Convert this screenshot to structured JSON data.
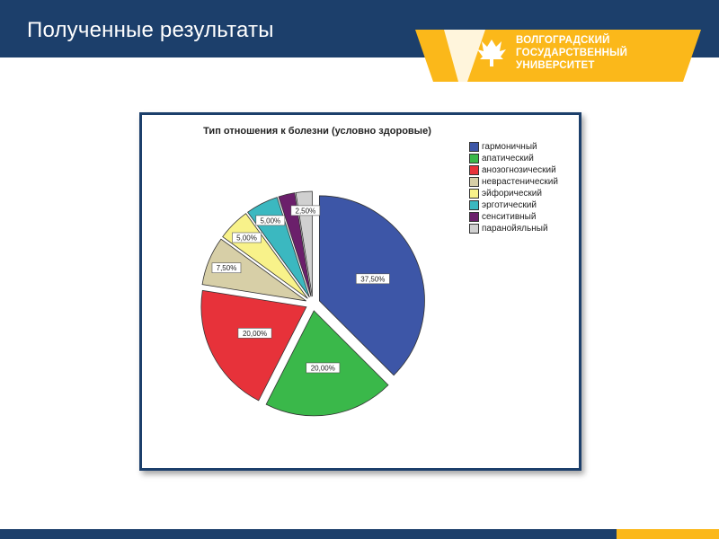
{
  "slide": {
    "title": "Полученные результаты"
  },
  "logo": {
    "line1": "ВОЛГОГРАДСКИЙ",
    "line2": "ГОСУДАРСТВЕННЫЙ",
    "line3": "УНИВЕРСИТЕТ",
    "colors": {
      "band": "#fbb81a",
      "header": "#1c3f6b",
      "text": "#ffffff"
    }
  },
  "chart_data": {
    "type": "pie",
    "title": "Тип отношения к болезни (условно здоровые)",
    "legend_position": "right",
    "slices": [
      {
        "label": "гармоничный",
        "value": 37.5,
        "display": "37,50%",
        "color": "#3d56a7",
        "exploded": true
      },
      {
        "label": "апатический",
        "value": 20.0,
        "display": "20,00%",
        "color": "#3ab84a",
        "exploded": true
      },
      {
        "label": "анозогнозический",
        "value": 20.0,
        "display": "20,00%",
        "color": "#e7323a",
        "exploded": true
      },
      {
        "label": "неврастенический",
        "value": 7.5,
        "display": "7,50%",
        "color": "#d7cfa7",
        "exploded": true
      },
      {
        "label": "эйфорический",
        "value": 5.0,
        "display": "5,00%",
        "color": "#f8f28a",
        "exploded": true
      },
      {
        "label": "эрготический",
        "value": 5.0,
        "display": "5,00%",
        "color": "#3bb8c0",
        "exploded": true
      },
      {
        "label": "сенситивный",
        "value": 2.5,
        "display": "",
        "color": "#6b1f6b",
        "exploded": true
      },
      {
        "label": "паранойяльный",
        "value": 2.5,
        "display": "2,50%",
        "color": "#d0d0d0",
        "exploded": true
      }
    ]
  }
}
